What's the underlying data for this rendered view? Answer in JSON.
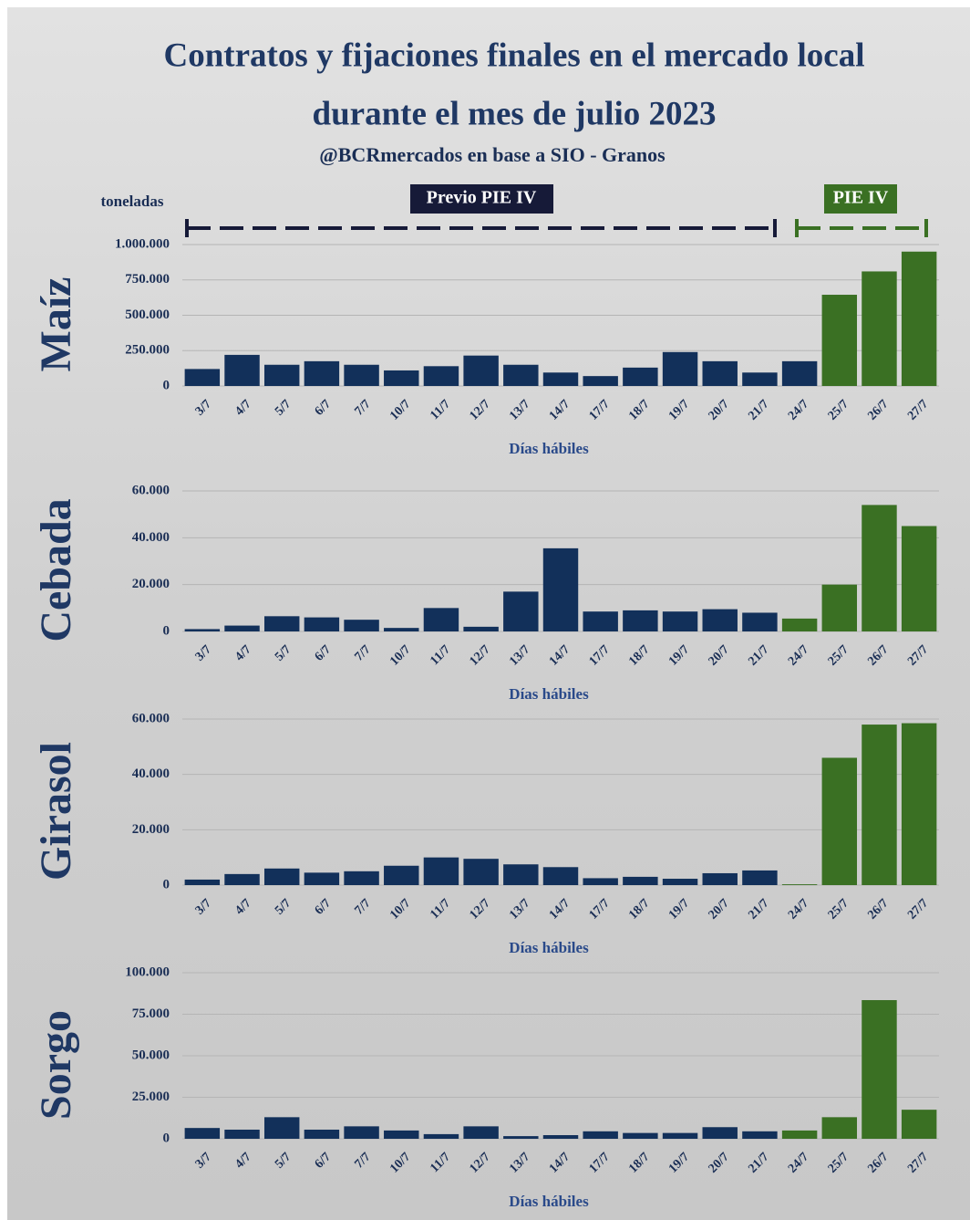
{
  "header": {
    "title": [
      "Contratos y fijaciones finales en el mercado local",
      "durante el mes de julio 2023"
    ],
    "subtitle": "@BCRmercados en base a SIO - Granos",
    "unit": "toneladas",
    "phase_before": "Previo PIE IV",
    "phase_after": "PIE IV"
  },
  "chart_data": [
    {
      "type": "bar",
      "ylabel": "Maíz",
      "xlabel": "Días hábiles",
      "categories": [
        "3/7",
        "4/7",
        "5/7",
        "6/7",
        "7/7",
        "10/7",
        "11/7",
        "12/7",
        "13/7",
        "14/7",
        "17/7",
        "18/7",
        "19/7",
        "20/7",
        "21/7",
        "24/7",
        "25/7",
        "26/7",
        "27/7"
      ],
      "values": [
        120000,
        220000,
        150000,
        175000,
        150000,
        110000,
        140000,
        215000,
        150000,
        95000,
        70000,
        130000,
        240000,
        175000,
        95000,
        175000,
        645000,
        810000,
        950000
      ],
      "colors": [
        "#12305a",
        "#12305a",
        "#12305a",
        "#12305a",
        "#12305a",
        "#12305a",
        "#12305a",
        "#12305a",
        "#12305a",
        "#12305a",
        "#12305a",
        "#12305a",
        "#12305a",
        "#12305a",
        "#12305a",
        "#12305a",
        "#3a7023",
        "#3a7023",
        "#3a7023"
      ],
      "ylim": [
        0,
        1000000
      ],
      "yticks": [
        0,
        {
          "value": 250000,
          "label": "250.000"
        },
        {
          "value": 500000,
          "label": "500.000"
        },
        {
          "value": 750000,
          "label": "750.000"
        },
        {
          "value": 1000000,
          "label": "1.000.000"
        }
      ],
      "grid": true
    },
    {
      "type": "bar",
      "ylabel": "Cebada",
      "xlabel": "Días hábiles",
      "categories": [
        "3/7",
        "4/7",
        "5/7",
        "6/7",
        "7/7",
        "10/7",
        "11/7",
        "12/7",
        "13/7",
        "14/7",
        "17/7",
        "18/7",
        "19/7",
        "20/7",
        "21/7",
        "24/7",
        "25/7",
        "26/7",
        "27/7"
      ],
      "values": [
        1000,
        2500,
        6500,
        6000,
        5000,
        1500,
        10000,
        2000,
        17000,
        35500,
        8500,
        9000,
        8500,
        9500,
        8000,
        5500,
        20000,
        54000,
        45000
      ],
      "colors": [
        "#12305a",
        "#12305a",
        "#12305a",
        "#12305a",
        "#12305a",
        "#12305a",
        "#12305a",
        "#12305a",
        "#12305a",
        "#12305a",
        "#12305a",
        "#12305a",
        "#12305a",
        "#12305a",
        "#12305a",
        "#3a7023",
        "#3a7023",
        "#3a7023",
        "#3a7023"
      ],
      "ylim": [
        0,
        60000
      ],
      "yticks": [
        0,
        {
          "value": 20000,
          "label": "20.000"
        },
        {
          "value": 40000,
          "label": "40.000"
        },
        {
          "value": 60000,
          "label": "60.000"
        }
      ],
      "grid": true
    },
    {
      "type": "bar",
      "ylabel": "Girasol",
      "xlabel": "Días hábiles",
      "categories": [
        "3/7",
        "4/7",
        "5/7",
        "6/7",
        "7/7",
        "10/7",
        "11/7",
        "12/7",
        "13/7",
        "14/7",
        "17/7",
        "18/7",
        "19/7",
        "20/7",
        "21/7",
        "24/7",
        "25/7",
        "26/7",
        "27/7"
      ],
      "values": [
        2000,
        4000,
        6000,
        4500,
        5000,
        7000,
        10000,
        9500,
        7500,
        6500,
        2500,
        3000,
        2300,
        4300,
        5300,
        300,
        46000,
        58000,
        58500
      ],
      "colors": [
        "#12305a",
        "#12305a",
        "#12305a",
        "#12305a",
        "#12305a",
        "#12305a",
        "#12305a",
        "#12305a",
        "#12305a",
        "#12305a",
        "#12305a",
        "#12305a",
        "#12305a",
        "#12305a",
        "#12305a",
        "#3a7023",
        "#3a7023",
        "#3a7023",
        "#3a7023"
      ],
      "ylim": [
        0,
        60000
      ],
      "yticks": [
        0,
        {
          "value": 20000,
          "label": "20.000"
        },
        {
          "value": 40000,
          "label": "40.000"
        },
        {
          "value": 60000,
          "label": "60.000"
        }
      ],
      "grid": true
    },
    {
      "type": "bar",
      "ylabel": "Sorgo",
      "xlabel": "Días hábiles",
      "categories": [
        "3/7",
        "4/7",
        "5/7",
        "6/7",
        "7/7",
        "10/7",
        "11/7",
        "12/7",
        "13/7",
        "14/7",
        "17/7",
        "18/7",
        "19/7",
        "20/7",
        "21/7",
        "24/7",
        "25/7",
        "26/7",
        "27/7"
      ],
      "values": [
        6500,
        5500,
        13000,
        5500,
        7500,
        5000,
        2800,
        7500,
        1600,
        2200,
        4500,
        3500,
        3500,
        7000,
        4500,
        5000,
        13000,
        83500,
        17500
      ],
      "colors": [
        "#12305a",
        "#12305a",
        "#12305a",
        "#12305a",
        "#12305a",
        "#12305a",
        "#12305a",
        "#12305a",
        "#12305a",
        "#12305a",
        "#12305a",
        "#12305a",
        "#12305a",
        "#12305a",
        "#12305a",
        "#3a7023",
        "#3a7023",
        "#3a7023",
        "#3a7023"
      ],
      "ylim": [
        0,
        100000
      ],
      "yticks": [
        0,
        {
          "value": 25000,
          "label": "25.000"
        },
        {
          "value": 50000,
          "label": "50.000"
        },
        {
          "value": 75000,
          "label": "75.000"
        },
        {
          "value": 100000,
          "label": "100.000"
        }
      ],
      "grid": true
    }
  ]
}
